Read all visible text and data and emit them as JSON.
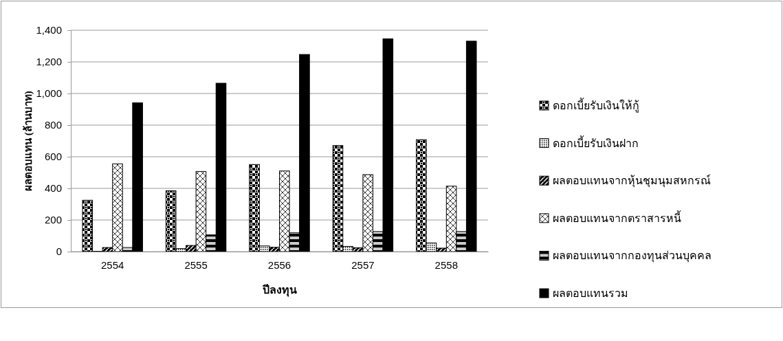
{
  "chart_data": {
    "type": "bar",
    "xlabel": "ปีลงทุน",
    "ylabel": "ผลตอบแทน (ล้านบาท)",
    "categories": [
      "2554",
      "2555",
      "2556",
      "2557",
      "2558"
    ],
    "series": [
      {
        "name": "ดอกเบี้ยรับเงินให้กู้",
        "color": "#000000",
        "values": [
          325,
          385,
          551,
          671,
          708
        ]
      },
      {
        "name": "ดอกเบี้ยรับเงินฝาก",
        "color": "#000000",
        "values": [
          2,
          19,
          36,
          33,
          55
        ]
      },
      {
        "name": "ผลตอบแทนจากหุ้นชุมนุมสหกรณ์",
        "color": "#000000",
        "values": [
          26,
          39,
          28,
          25,
          22
        ]
      },
      {
        "name": "ผลตอบแทนจากตราสารหนี้",
        "color": "#000000",
        "values": [
          555,
          507,
          510,
          487,
          414
        ]
      },
      {
        "name": "ผลตอบแทนจากกองทุนส่วนบุคคล",
        "color": "#000000",
        "values": [
          26,
          106,
          119,
          127,
          127
        ]
      },
      {
        "name": "ผลตอบแทนรวม",
        "color": "#000000",
        "values": [
          941,
          1065,
          1247,
          1346,
          1331
        ]
      }
    ],
    "ylim": [
      0,
      1400
    ],
    "yticks": [
      0,
      {
        "value": 200,
        "label": "200"
      },
      {
        "value": 400,
        "label": "400"
      },
      {
        "value": 600,
        "label": "600"
      },
      {
        "value": 800,
        "label": "800"
      },
      {
        "value": 1000,
        "label": "1,000"
      },
      {
        "value": 1200,
        "label": "1,200"
      },
      {
        "value": 1400,
        "label": "1,400"
      }
    ],
    "grid": "y",
    "legend": "right"
  }
}
